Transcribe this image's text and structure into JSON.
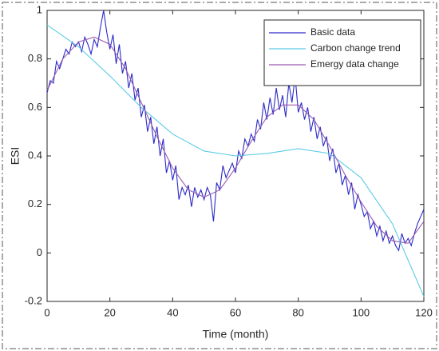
{
  "chart_data": {
    "type": "line",
    "xlabel": "Time (month)",
    "ylabel": "ESI",
    "xlim": [
      0,
      120
    ],
    "xticks": [
      0,
      20,
      40,
      60,
      80,
      100,
      120
    ],
    "ylim": [
      -0.2,
      1
    ],
    "yticks": [
      -0.2,
      0,
      0.2,
      0.4,
      0.6,
      0.8,
      1
    ],
    "grid": false,
    "legend": "upper right",
    "series": [
      {
        "name": "Basic data",
        "color": "#2b2bc8",
        "x": [
          0,
          1,
          2,
          3,
          4,
          5,
          6,
          7,
          8,
          9,
          10,
          11,
          12,
          13,
          14,
          15,
          16,
          17,
          18,
          19,
          20,
          21,
          22,
          23,
          24,
          25,
          26,
          27,
          28,
          29,
          30,
          31,
          32,
          33,
          34,
          35,
          36,
          37,
          38,
          39,
          40,
          41,
          42,
          43,
          44,
          45,
          46,
          47,
          48,
          49,
          50,
          51,
          52,
          53,
          54,
          55,
          56,
          57,
          58,
          59,
          60,
          61,
          62,
          63,
          64,
          65,
          66,
          67,
          68,
          69,
          70,
          71,
          72,
          73,
          74,
          75,
          76,
          77,
          78,
          79,
          80,
          81,
          82,
          83,
          84,
          85,
          86,
          87,
          88,
          89,
          90,
          91,
          92,
          93,
          94,
          95,
          96,
          97,
          98,
          99,
          100,
          101,
          102,
          103,
          104,
          105,
          106,
          107,
          108,
          109,
          110,
          111,
          112,
          113,
          114,
          115,
          116,
          117,
          118,
          119,
          120
        ],
        "values": [
          0.66,
          0.71,
          0.7,
          0.79,
          0.76,
          0.8,
          0.84,
          0.82,
          0.87,
          0.85,
          0.87,
          0.83,
          0.89,
          0.86,
          0.82,
          0.88,
          0.85,
          0.93,
          1.0,
          0.91,
          0.84,
          0.9,
          0.78,
          0.86,
          0.74,
          0.79,
          0.68,
          0.74,
          0.63,
          0.68,
          0.56,
          0.61,
          0.5,
          0.56,
          0.45,
          0.52,
          0.4,
          0.47,
          0.33,
          0.38,
          0.3,
          0.36,
          0.22,
          0.27,
          0.24,
          0.28,
          0.19,
          0.27,
          0.23,
          0.26,
          0.22,
          0.27,
          0.24,
          0.13,
          0.29,
          0.26,
          0.36,
          0.31,
          0.34,
          0.37,
          0.33,
          0.42,
          0.39,
          0.47,
          0.44,
          0.49,
          0.46,
          0.55,
          0.51,
          0.62,
          0.55,
          0.64,
          0.57,
          0.68,
          0.59,
          0.65,
          0.56,
          0.7,
          0.62,
          0.73,
          0.58,
          0.62,
          0.55,
          0.6,
          0.5,
          0.56,
          0.47,
          0.52,
          0.44,
          0.48,
          0.38,
          0.43,
          0.33,
          0.37,
          0.28,
          0.32,
          0.24,
          0.29,
          0.18,
          0.24,
          0.2,
          0.15,
          0.17,
          0.1,
          0.13,
          0.07,
          0.11,
          0.05,
          0.09,
          0.04,
          0.07,
          0.03,
          0.01,
          0.08,
          0.04,
          0.06,
          0.03,
          0.08,
          0.12,
          0.15,
          0.18
        ]
      },
      {
        "name": "Carbon change trend",
        "color": "#5ccbe6",
        "x": [
          0,
          10,
          20,
          30,
          40,
          50,
          60,
          70,
          80,
          90,
          100,
          110,
          120
        ],
        "values": [
          0.94,
          0.85,
          0.73,
          0.6,
          0.49,
          0.42,
          0.4,
          0.41,
          0.43,
          0.41,
          0.31,
          0.12,
          -0.18
        ]
      },
      {
        "name": "Emergy data change",
        "color": "#9a5bb0",
        "x": [
          0,
          5,
          10,
          15,
          20,
          25,
          30,
          35,
          40,
          45,
          50,
          55,
          60,
          65,
          70,
          75,
          80,
          85,
          90,
          95,
          100,
          105,
          110,
          115,
          120
        ],
        "values": [
          0.67,
          0.8,
          0.87,
          0.89,
          0.86,
          0.76,
          0.62,
          0.48,
          0.35,
          0.26,
          0.23,
          0.26,
          0.35,
          0.46,
          0.56,
          0.61,
          0.61,
          0.55,
          0.44,
          0.32,
          0.21,
          0.11,
          0.05,
          0.04,
          0.13
        ]
      }
    ]
  }
}
